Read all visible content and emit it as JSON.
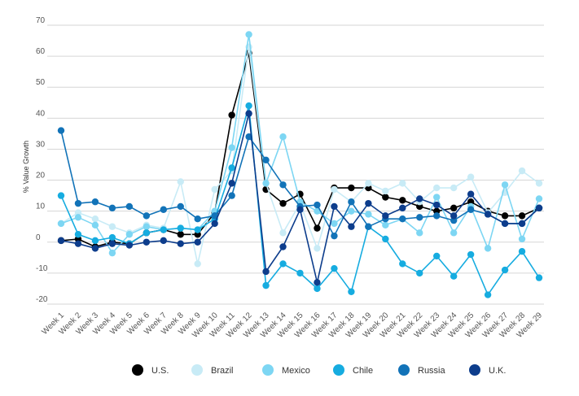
{
  "chart_data": {
    "type": "line",
    "title": "",
    "xlabel": "",
    "ylabel": "% Value Growth",
    "ylim": [
      -20,
      70
    ],
    "yticks": [
      -20,
      -10,
      0,
      10,
      20,
      30,
      40,
      50,
      60,
      70
    ],
    "grid": true,
    "legend_position": "bottom",
    "categories": [
      "Week 1",
      "Week 2",
      "Week 3",
      "Week 4",
      "Week 5",
      "Week 6",
      "Week 7",
      "Week 8",
      "Week 9",
      "Week 10",
      "Week 11",
      "Week 12",
      "Week 13",
      "Week 14",
      "Week 15",
      "Week 16",
      "Week 17",
      "Week 18",
      "Week 19",
      "Week 20",
      "Week 21",
      "Week 22",
      "Week 23",
      "Week 24",
      "Week 25",
      "Week 26",
      "Week 27",
      "Week 28",
      "Week 29"
    ],
    "series": [
      {
        "name": "U.S.",
        "color": "#000000",
        "values": [
          0.5,
          1,
          -1.5,
          0,
          -0.5,
          3,
          4,
          2.5,
          2.5,
          9.5,
          41,
          61,
          17,
          12.5,
          15.5,
          4.5,
          17.5,
          17.5,
          17.5,
          14.5,
          13.5,
          11.5,
          10,
          11,
          13,
          10,
          8.5,
          8.5,
          11
        ]
      },
      {
        "name": "Brazil",
        "color": "#c8ebf6",
        "values": [
          6,
          9.5,
          7.5,
          5,
          3,
          5.5,
          4.5,
          19.5,
          -7,
          17,
          23,
          63,
          19,
          3,
          12.5,
          -2,
          17,
          13,
          19,
          16.5,
          19,
          13,
          17.5,
          17.5,
          21,
          9.5,
          16,
          23,
          19
        ]
      },
      {
        "name": "Mexico",
        "color": "#7dd6f3",
        "values": [
          6,
          8,
          5.5,
          -3.5,
          2.5,
          5,
          4,
          4.5,
          4,
          10,
          30.5,
          67,
          19,
          34,
          13,
          10,
          6,
          10,
          9,
          5.5,
          7.5,
          3,
          14.5,
          3,
          11.5,
          -2,
          18.5,
          1,
          14
        ]
      },
      {
        "name": "Chile",
        "color": "#16ace0",
        "values": [
          15,
          2.5,
          0.5,
          1.5,
          -0.5,
          3,
          4,
          4.5,
          4,
          7.5,
          24,
          44,
          -14,
          -7,
          -10,
          -15,
          -8.5,
          -16,
          5,
          1,
          -7,
          -10,
          -4.5,
          -11,
          -4,
          -17,
          -9,
          -3,
          -11.5
        ]
      },
      {
        "name": "Russia",
        "color": "#1273b8",
        "values": [
          36,
          12.5,
          13,
          11,
          11.5,
          8.5,
          10.5,
          11.5,
          7.5,
          8.5,
          15,
          34,
          26.5,
          18.5,
          11.5,
          12,
          2,
          13,
          5,
          7.5,
          7.5,
          8,
          8.5,
          7,
          10.5,
          9,
          6,
          6,
          11
        ]
      },
      {
        "name": "U.K.",
        "color": "#0d3d8c",
        "values": [
          0.5,
          -0.5,
          -2,
          -0.5,
          -1,
          0,
          0.5,
          -0.5,
          0,
          6,
          19,
          41.5,
          -9.5,
          -1.5,
          10.5,
          -13,
          11.5,
          5,
          12.5,
          8.5,
          11,
          14,
          12,
          8.5,
          15.5,
          9,
          6,
          6,
          11
        ]
      }
    ]
  }
}
